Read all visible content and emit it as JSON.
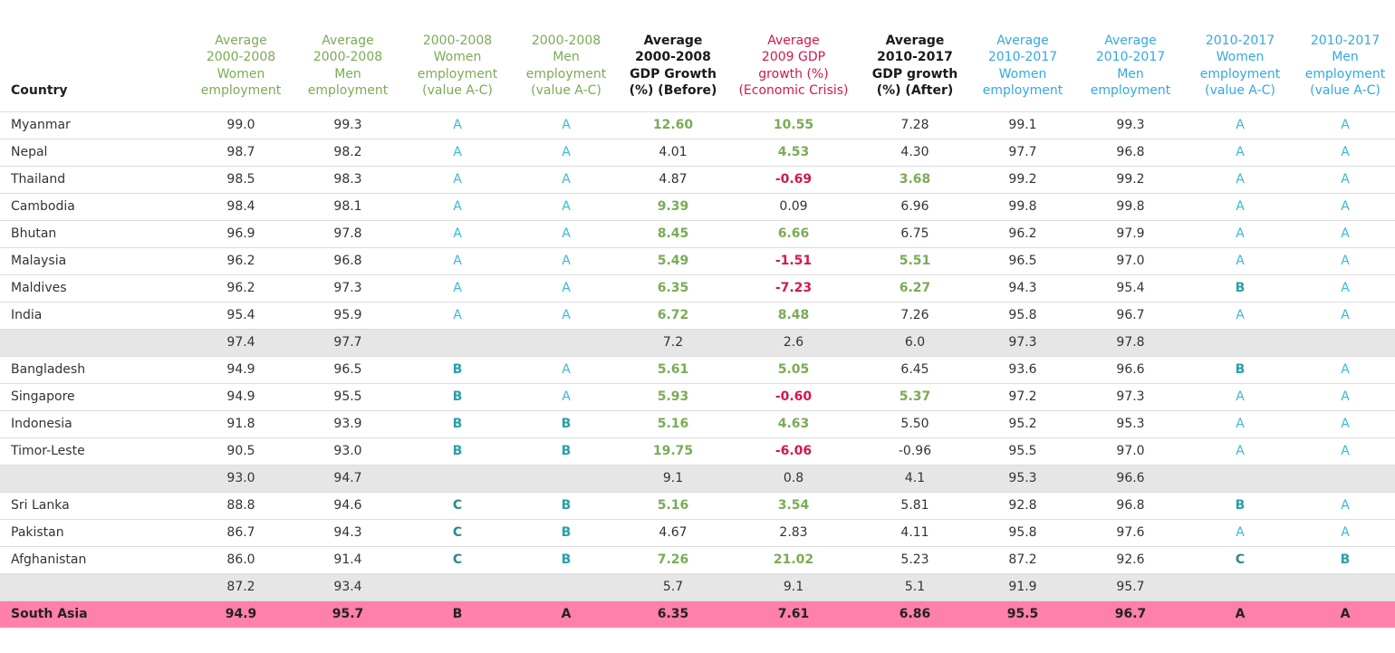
{
  "colors": {
    "green_header": "#7aab55",
    "red_header": "#d41651",
    "blue_header": "#33a9e0",
    "subtotal_row": "#e6e6e6",
    "total_row": "#ff80aa"
  },
  "headers": [
    {
      "lines": [
        "Country"
      ],
      "color": "dark"
    },
    {
      "lines": [
        "Average",
        "2000-2008",
        "Women",
        "employment"
      ],
      "color": "green"
    },
    {
      "lines": [
        "Average",
        "2000-2008",
        "Men",
        "employment"
      ],
      "color": "green"
    },
    {
      "lines": [
        "2000-2008",
        "Women",
        "employment",
        "(value A-C)"
      ],
      "color": "green"
    },
    {
      "lines": [
        "2000-2008",
        "Men",
        "employment",
        "(value A-C)"
      ],
      "color": "green"
    },
    {
      "lines": [
        "Average",
        "2000-2008",
        "GDP Growth",
        "(%) (Before)"
      ],
      "color": "dark"
    },
    {
      "lines": [
        "Average",
        "2009 GDP",
        "growth (%)",
        "(Economic Crisis)"
      ],
      "color": "red"
    },
    {
      "lines": [
        "Average",
        "2010-2017",
        "GDP growth",
        "(%) (After)"
      ],
      "color": "dark"
    },
    {
      "lines": [
        "Average",
        "2010-2017",
        "Women",
        "employment"
      ],
      "color": "blue"
    },
    {
      "lines": [
        "Average",
        "2010-2017",
        "Men",
        "employment"
      ],
      "color": "blue"
    },
    {
      "lines": [
        "2010-2017",
        "Women",
        "employment",
        "(value A-C)"
      ],
      "color": "blue"
    },
    {
      "lines": [
        "2010-2017",
        "Men",
        "employment",
        "(value A-C)"
      ],
      "color": "blue"
    }
  ],
  "rows": [
    {
      "type": "data",
      "country": "Myanmar",
      "w0008": "99.0",
      "m0008": "99.3",
      "wg0008": "A",
      "mg0008": "A",
      "gdp_before": {
        "v": "12.60",
        "s": "pos"
      },
      "gdp_2009": {
        "v": "10.55",
        "s": "pos"
      },
      "gdp_after": {
        "v": "7.28",
        "s": "norm"
      },
      "w1017": "99.1",
      "m1017": "99.3",
      "wg1017": "A",
      "mg1017": "A"
    },
    {
      "type": "data",
      "country": "Nepal",
      "w0008": "98.7",
      "m0008": "98.2",
      "wg0008": "A",
      "mg0008": "A",
      "gdp_before": {
        "v": "4.01",
        "s": "norm"
      },
      "gdp_2009": {
        "v": "4.53",
        "s": "pos"
      },
      "gdp_after": {
        "v": "4.30",
        "s": "norm"
      },
      "w1017": "97.7",
      "m1017": "96.8",
      "wg1017": "A",
      "mg1017": "A"
    },
    {
      "type": "data",
      "country": "Thailand",
      "w0008": "98.5",
      "m0008": "98.3",
      "wg0008": "A",
      "mg0008": "A",
      "gdp_before": {
        "v": "4.87",
        "s": "norm"
      },
      "gdp_2009": {
        "v": "-0.69",
        "s": "neg"
      },
      "gdp_after": {
        "v": "3.68",
        "s": "pos"
      },
      "w1017": "99.2",
      "m1017": "99.2",
      "wg1017": "A",
      "mg1017": "A"
    },
    {
      "type": "data",
      "country": "Cambodia",
      "w0008": "98.4",
      "m0008": "98.1",
      "wg0008": "A",
      "mg0008": "A",
      "gdp_before": {
        "v": "9.39",
        "s": "pos"
      },
      "gdp_2009": {
        "v": "0.09",
        "s": "norm"
      },
      "gdp_after": {
        "v": "6.96",
        "s": "norm"
      },
      "w1017": "99.8",
      "m1017": "99.8",
      "wg1017": "A",
      "mg1017": "A"
    },
    {
      "type": "data",
      "country": "Bhutan",
      "w0008": "96.9",
      "m0008": "97.8",
      "wg0008": "A",
      "mg0008": "A",
      "gdp_before": {
        "v": "8.45",
        "s": "pos"
      },
      "gdp_2009": {
        "v": "6.66",
        "s": "pos"
      },
      "gdp_after": {
        "v": "6.75",
        "s": "norm"
      },
      "w1017": "96.2",
      "m1017": "97.9",
      "wg1017": "A",
      "mg1017": "A"
    },
    {
      "type": "data",
      "country": "Malaysia",
      "w0008": "96.2",
      "m0008": "96.8",
      "wg0008": "A",
      "mg0008": "A",
      "gdp_before": {
        "v": "5.49",
        "s": "pos"
      },
      "gdp_2009": {
        "v": "-1.51",
        "s": "neg"
      },
      "gdp_after": {
        "v": "5.51",
        "s": "pos"
      },
      "w1017": "96.5",
      "m1017": "97.0",
      "wg1017": "A",
      "mg1017": "A"
    },
    {
      "type": "data",
      "country": "Maldives",
      "w0008": "96.2",
      "m0008": "97.3",
      "wg0008": "A",
      "mg0008": "A",
      "gdp_before": {
        "v": "6.35",
        "s": "pos"
      },
      "gdp_2009": {
        "v": "-7.23",
        "s": "neg"
      },
      "gdp_after": {
        "v": "6.27",
        "s": "pos"
      },
      "w1017": "94.3",
      "m1017": "95.4",
      "wg1017": "B",
      "mg1017": "A"
    },
    {
      "type": "data",
      "country": "India",
      "w0008": "95.4",
      "m0008": "95.9",
      "wg0008": "A",
      "mg0008": "A",
      "gdp_before": {
        "v": "6.72",
        "s": "pos"
      },
      "gdp_2009": {
        "v": "8.48",
        "s": "pos"
      },
      "gdp_after": {
        "v": "7.26",
        "s": "norm"
      },
      "w1017": "95.8",
      "m1017": "96.7",
      "wg1017": "A",
      "mg1017": "A"
    },
    {
      "type": "sub",
      "country": "",
      "w0008": "97.4",
      "m0008": "97.7",
      "wg0008": "",
      "mg0008": "",
      "gdp_before": {
        "v": "7.2",
        "s": "norm"
      },
      "gdp_2009": {
        "v": "2.6",
        "s": "norm"
      },
      "gdp_after": {
        "v": "6.0",
        "s": "norm"
      },
      "w1017": "97.3",
      "m1017": "97.8",
      "wg1017": "",
      "mg1017": ""
    },
    {
      "type": "data",
      "country": "Bangladesh",
      "w0008": "94.9",
      "m0008": "96.5",
      "wg0008": "B",
      "mg0008": "A",
      "gdp_before": {
        "v": "5.61",
        "s": "pos"
      },
      "gdp_2009": {
        "v": "5.05",
        "s": "pos"
      },
      "gdp_after": {
        "v": "6.45",
        "s": "norm"
      },
      "w1017": "93.6",
      "m1017": "96.6",
      "wg1017": "B",
      "mg1017": "A"
    },
    {
      "type": "data",
      "country": "Singapore",
      "w0008": "94.9",
      "m0008": "95.5",
      "wg0008": "B",
      "mg0008": "A",
      "gdp_before": {
        "v": "5.93",
        "s": "pos"
      },
      "gdp_2009": {
        "v": "-0.60",
        "s": "neg"
      },
      "gdp_after": {
        "v": "5.37",
        "s": "pos"
      },
      "w1017": "97.2",
      "m1017": "97.3",
      "wg1017": "A",
      "mg1017": "A"
    },
    {
      "type": "data",
      "country": "Indonesia",
      "w0008": "91.8",
      "m0008": "93.9",
      "wg0008": "B",
      "mg0008": "B",
      "gdp_before": {
        "v": "5.16",
        "s": "pos"
      },
      "gdp_2009": {
        "v": "4.63",
        "s": "pos"
      },
      "gdp_after": {
        "v": "5.50",
        "s": "norm"
      },
      "w1017": "95.2",
      "m1017": "95.3",
      "wg1017": "A",
      "mg1017": "A"
    },
    {
      "type": "data",
      "country": "Timor-Leste",
      "w0008": "90.5",
      "m0008": "93.0",
      "wg0008": "B",
      "mg0008": "B",
      "gdp_before": {
        "v": "19.75",
        "s": "pos"
      },
      "gdp_2009": {
        "v": "-6.06",
        "s": "neg"
      },
      "gdp_after": {
        "v": "-0.96",
        "s": "norm"
      },
      "w1017": "95.5",
      "m1017": "97.0",
      "wg1017": "A",
      "mg1017": "A"
    },
    {
      "type": "sub",
      "country": "",
      "w0008": "93.0",
      "m0008": "94.7",
      "wg0008": "",
      "mg0008": "",
      "gdp_before": {
        "v": "9.1",
        "s": "norm"
      },
      "gdp_2009": {
        "v": "0.8",
        "s": "norm"
      },
      "gdp_after": {
        "v": "4.1",
        "s": "norm"
      },
      "w1017": "95.3",
      "m1017": "96.6",
      "wg1017": "",
      "mg1017": ""
    },
    {
      "type": "data",
      "country": "Sri Lanka",
      "w0008": "88.8",
      "m0008": "94.6",
      "wg0008": "C",
      "mg0008": "B",
      "gdp_before": {
        "v": "5.16",
        "s": "pos"
      },
      "gdp_2009": {
        "v": "3.54",
        "s": "pos"
      },
      "gdp_after": {
        "v": "5.81",
        "s": "norm"
      },
      "w1017": "92.8",
      "m1017": "96.8",
      "wg1017": "B",
      "mg1017": "A"
    },
    {
      "type": "data",
      "country": "Pakistan",
      "w0008": "86.7",
      "m0008": "94.3",
      "wg0008": "C",
      "mg0008": "B",
      "gdp_before": {
        "v": "4.67",
        "s": "norm"
      },
      "gdp_2009": {
        "v": "2.83",
        "s": "norm"
      },
      "gdp_after": {
        "v": "4.11",
        "s": "norm"
      },
      "w1017": "95.8",
      "m1017": "97.6",
      "wg1017": "A",
      "mg1017": "A"
    },
    {
      "type": "data",
      "country": "Afghanistan",
      "w0008": "86.0",
      "m0008": "91.4",
      "wg0008": "C",
      "mg0008": "B",
      "gdp_before": {
        "v": "7.26",
        "s": "pos"
      },
      "gdp_2009": {
        "v": "21.02",
        "s": "pos"
      },
      "gdp_after": {
        "v": "5.23",
        "s": "norm"
      },
      "w1017": "87.2",
      "m1017": "92.6",
      "wg1017": "C",
      "mg1017": "B"
    },
    {
      "type": "sub",
      "country": "",
      "w0008": "87.2",
      "m0008": "93.4",
      "wg0008": "",
      "mg0008": "",
      "gdp_before": {
        "v": "5.7",
        "s": "norm"
      },
      "gdp_2009": {
        "v": "9.1",
        "s": "norm"
      },
      "gdp_after": {
        "v": "5.1",
        "s": "norm"
      },
      "w1017": "91.9",
      "m1017": "95.7",
      "wg1017": "",
      "mg1017": ""
    },
    {
      "type": "total",
      "country": "South Asia",
      "w0008": "94.9",
      "m0008": "95.7",
      "wg0008": "B",
      "mg0008": "A",
      "gdp_before": {
        "v": "6.35",
        "s": "norm"
      },
      "gdp_2009": {
        "v": "7.61",
        "s": "norm"
      },
      "gdp_after": {
        "v": "6.86",
        "s": "norm"
      },
      "w1017": "95.5",
      "m1017": "96.7",
      "wg1017": "A",
      "mg1017": "A"
    }
  ]
}
